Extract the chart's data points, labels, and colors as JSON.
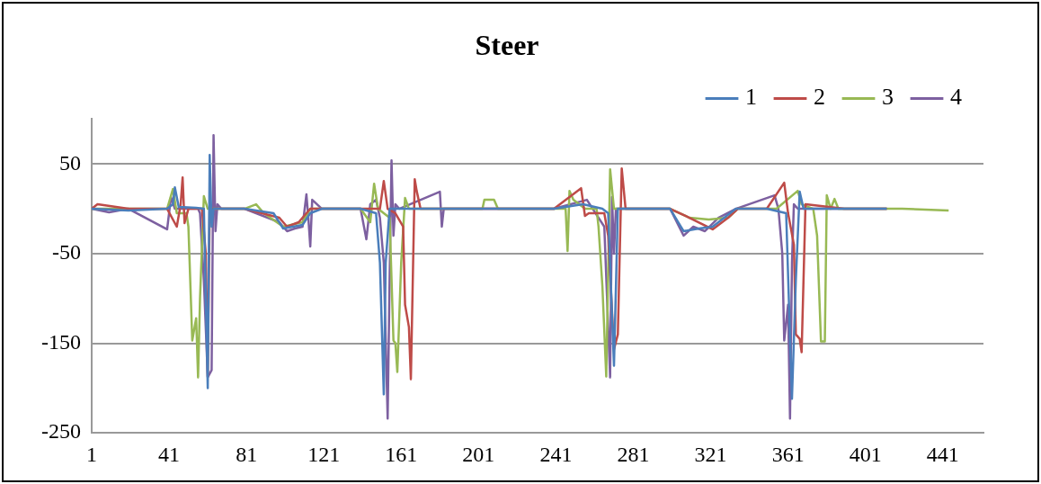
{
  "chart_data": {
    "type": "line",
    "title": "Steer",
    "xlim": [
      1,
      462
    ],
    "xticks": [
      1,
      41,
      81,
      121,
      161,
      201,
      241,
      281,
      321,
      361,
      401,
      441
    ],
    "ylim": [
      -250,
      100
    ],
    "yticks": [
      -250,
      -150,
      -50,
      50
    ],
    "grid": "y",
    "legend": "top right",
    "marker": "none",
    "line_style": "solid",
    "series": [
      {
        "name": "1",
        "color": "#4a7ebb",
        "x": [
          1,
          20,
          40,
          43,
          44,
          46,
          55,
          59,
          60,
          61,
          62,
          63,
          64,
          80,
          95,
          100,
          105,
          110,
          114,
          120,
          140,
          148,
          150,
          152,
          153,
          155,
          170,
          200,
          240,
          255,
          265,
          268,
          271,
          273,
          300,
          307,
          315,
          322,
          334,
          350,
          360,
          363,
          365,
          367,
          369,
          390,
          412
        ],
        "values": [
          0,
          -2,
          0,
          5,
          24,
          2,
          1,
          0,
          -100,
          -200,
          60,
          -20,
          0,
          0,
          -5,
          -22,
          -20,
          -18,
          -5,
          0,
          0,
          -5,
          -60,
          -207,
          -60,
          0,
          0,
          0,
          0,
          5,
          0,
          -5,
          -175,
          0,
          0,
          -25,
          -22,
          -20,
          0,
          0,
          -5,
          -212,
          -80,
          19,
          0,
          0,
          0
        ]
      },
      {
        "name": "2",
        "color": "#be4b48",
        "x": [
          1,
          4,
          20,
          40,
          45,
          47,
          48,
          49,
          51,
          58,
          60,
          61,
          62,
          80,
          98,
          102,
          108,
          114,
          120,
          140,
          150,
          152,
          154,
          158,
          162,
          163,
          165,
          166,
          168,
          169,
          171,
          200,
          240,
          254,
          256,
          258,
          266,
          268,
          271,
          273,
          275,
          277,
          300,
          310,
          322,
          330,
          335,
          350,
          359,
          361,
          364,
          365,
          367,
          368,
          370,
          390,
          412
        ],
        "values": [
          0,
          5,
          0,
          0,
          -20,
          5,
          35,
          -16,
          0,
          0,
          -50,
          -187,
          0,
          0,
          -10,
          -20,
          -15,
          0,
          0,
          0,
          0,
          31,
          0,
          -5,
          -20,
          -107,
          -132,
          -190,
          33,
          20,
          0,
          0,
          0,
          23,
          -8,
          -5,
          -5,
          -30,
          -157,
          -140,
          45,
          0,
          0,
          -10,
          -23,
          -10,
          0,
          0,
          29,
          -5,
          -40,
          -140,
          -145,
          -160,
          5,
          0,
          0
        ]
      },
      {
        "name": "3",
        "color": "#98b954",
        "x": [
          1,
          20,
          40,
          43,
          45,
          50,
          51,
          53,
          55,
          56,
          57,
          59,
          61,
          80,
          86,
          90,
          100,
          110,
          114,
          140,
          145,
          147,
          149,
          155,
          157,
          158,
          159,
          161,
          163,
          165,
          200,
          203,
          204,
          209,
          211,
          246,
          247,
          248,
          250,
          256,
          262,
          263,
          265,
          267,
          269,
          271,
          300,
          310,
          320,
          330,
          335,
          355,
          366,
          368,
          374,
          376,
          378,
          380,
          381,
          383,
          385,
          387,
          420,
          444
        ],
        "values": [
          0,
          0,
          0,
          22,
          -5,
          -5,
          -20,
          -147,
          -122,
          -188,
          -100,
          14,
          0,
          0,
          5,
          -5,
          -20,
          -15,
          0,
          0,
          -15,
          28,
          0,
          -10,
          -147,
          -150,
          -182,
          -60,
          12,
          0,
          0,
          0,
          10,
          10,
          0,
          0,
          -47,
          20,
          10,
          0,
          0,
          -20,
          -86,
          -187,
          44,
          0,
          0,
          -10,
          -12,
          -10,
          0,
          0,
          20,
          5,
          0,
          -30,
          -148,
          -148,
          15,
          0,
          11,
          0,
          0,
          -2
        ]
      },
      {
        "name": "4",
        "color": "#7d60a0",
        "x": [
          1,
          10,
          20,
          40,
          42,
          44,
          56,
          57,
          59,
          61,
          63,
          64,
          65,
          66,
          68,
          80,
          98,
          102,
          106,
          110,
          112,
          113,
          114,
          115,
          120,
          140,
          143,
          145,
          148,
          150,
          152,
          154,
          155,
          156,
          157,
          158,
          160,
          181,
          182,
          183,
          200,
          240,
          257,
          260,
          266,
          269,
          270,
          271,
          272,
          300,
          307,
          312,
          318,
          325,
          334,
          354,
          356,
          358,
          359,
          361,
          362,
          363,
          364,
          366,
          390,
          412
        ],
        "values": [
          0,
          -4,
          0,
          -23,
          13,
          0,
          0,
          -5,
          -80,
          -188,
          -180,
          82,
          -25,
          5,
          0,
          0,
          -15,
          -25,
          -22,
          -20,
          16,
          -10,
          -42,
          10,
          0,
          0,
          -34,
          5,
          10,
          -10,
          -60,
          -234,
          -80,
          54,
          -30,
          5,
          0,
          19,
          -20,
          0,
          0,
          0,
          10,
          0,
          -20,
          -188,
          13,
          -50,
          0,
          0,
          -30,
          -20,
          -25,
          -10,
          0,
          15,
          0,
          -50,
          -147,
          -107,
          -234,
          -60,
          5,
          0,
          0,
          0
        ]
      }
    ]
  }
}
